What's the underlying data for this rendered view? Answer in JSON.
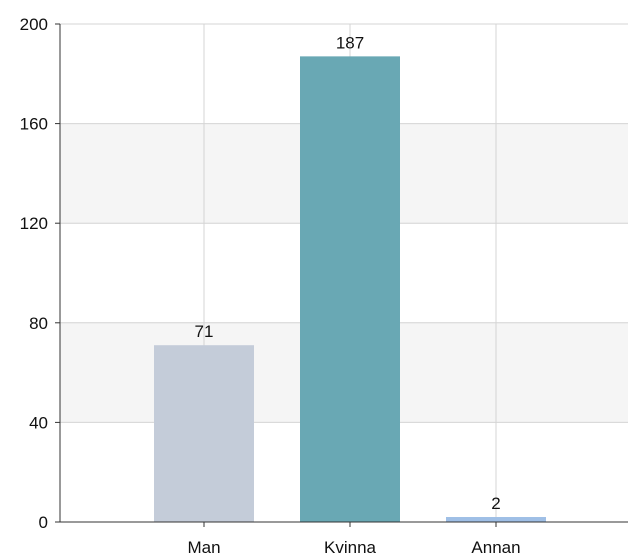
{
  "chart_data": {
    "type": "bar",
    "title": "",
    "xlabel": "",
    "ylabel": "",
    "categories": [
      "Man",
      "Kvinna",
      "Annan"
    ],
    "values": [
      71,
      187,
      2
    ],
    "data_labels": [
      "71",
      "187",
      "2"
    ],
    "colors": [
      "#c4ccd9",
      "#69a8b4",
      "#9fbfe6"
    ],
    "ylim": [
      0,
      200
    ],
    "yticks": [
      0,
      40,
      80,
      120,
      160,
      200
    ],
    "ytick_labels": [
      "0",
      "40",
      "80",
      "120",
      "160",
      "200"
    ],
    "grid": true,
    "legend": "none"
  }
}
